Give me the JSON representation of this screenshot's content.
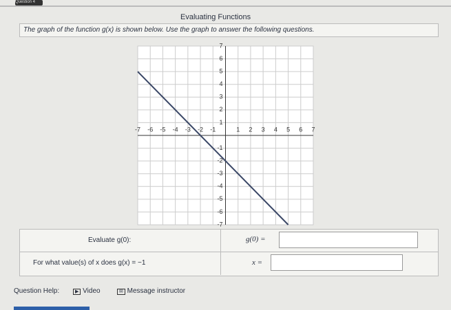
{
  "header": {
    "question": "Question 4",
    "title": "Evaluating Functions"
  },
  "instructions": "The graph of the function g(x) is shown below. Use the graph to answer the following questions.",
  "graph": {
    "type": "line",
    "x": [
      -7,
      5
    ],
    "values": [
      5,
      -7
    ],
    "color": "#3a4766",
    "xlim": [
      -7,
      7
    ],
    "ylim": [
      -7,
      7
    ],
    "xticks": [
      -7,
      -6,
      -5,
      -4,
      -3,
      -2,
      -1,
      1,
      2,
      3,
      4,
      5,
      6,
      7
    ],
    "yticks": [
      -7,
      -6,
      -5,
      -4,
      -3,
      -2,
      -1,
      1,
      2,
      3,
      4,
      5,
      6,
      7
    ],
    "grid": true
  },
  "questions": [
    {
      "prompt": "Evaluate g(0):",
      "answer_label": "g(0) ="
    },
    {
      "prompt": "For what value(s) of x does g(x) = −1",
      "answer_label": "x ="
    }
  ],
  "help": {
    "label": "Question Help:",
    "video": "Video",
    "message": "Message instructor"
  }
}
